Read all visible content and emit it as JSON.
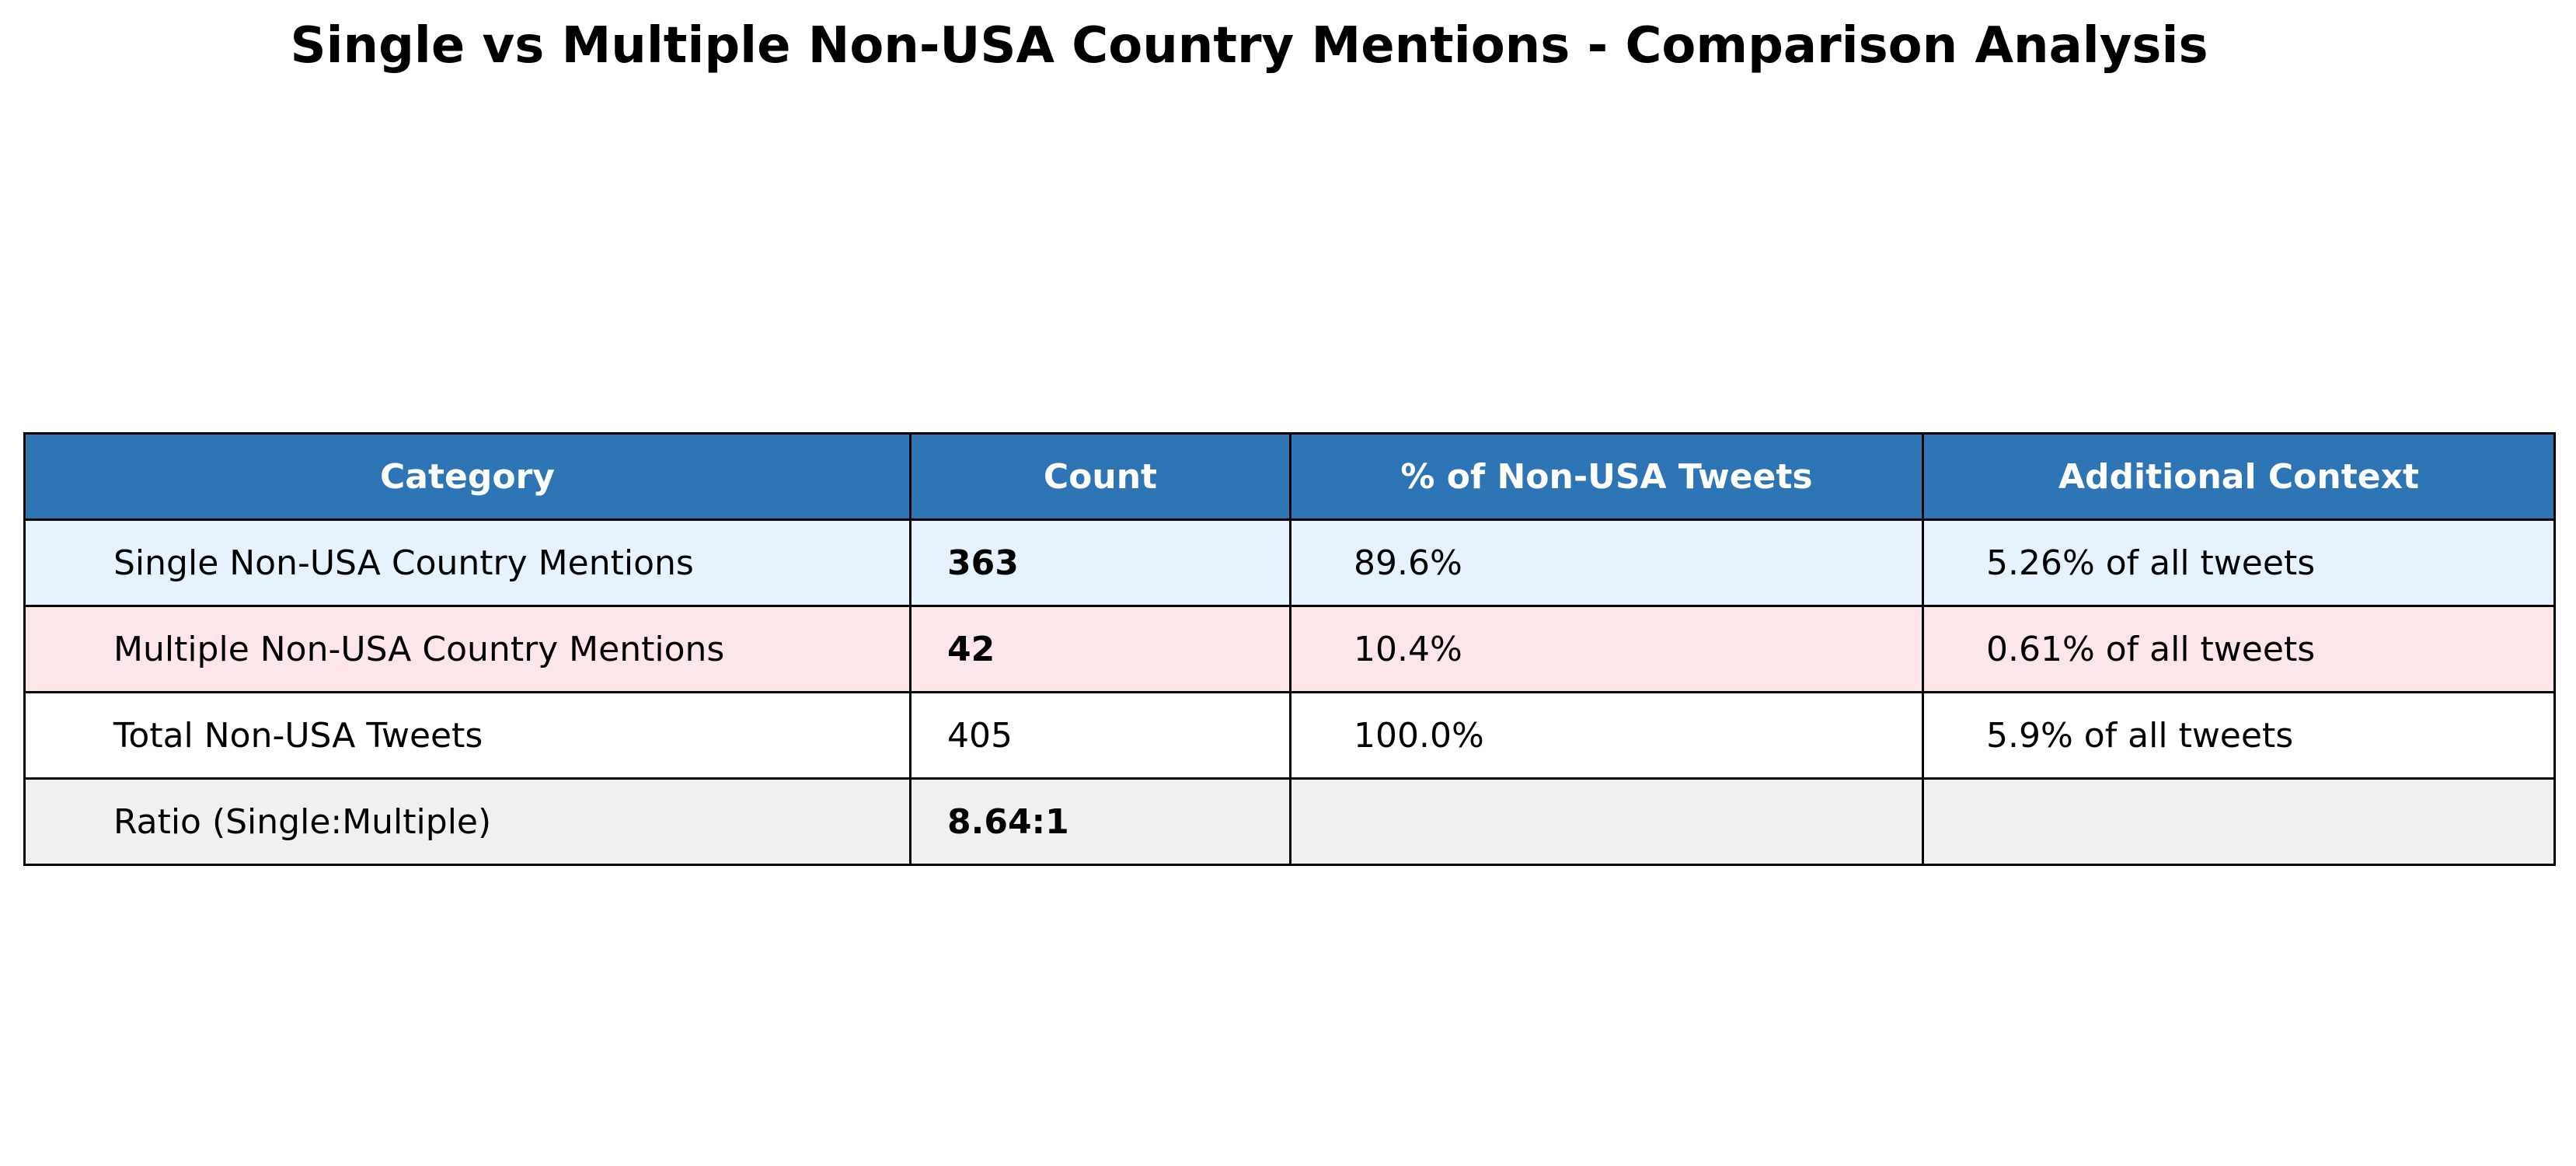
{
  "chart_data": {
    "type": "table",
    "title": "Single vs Multiple Non-USA Country Mentions - Comparison Analysis",
    "columns": [
      "Category",
      "Count",
      "% of Non-USA Tweets",
      "Additional Context"
    ],
    "rows": [
      {
        "cells": [
          "Single Non-USA Country Mentions",
          "363",
          "89.6%",
          "5.26% of all tweets"
        ],
        "bg": "#e6f2fd",
        "bold_cells": [
          1
        ]
      },
      {
        "cells": [
          "Multiple Non-USA Country Mentions",
          "42",
          "10.4%",
          "0.61% of all tweets"
        ],
        "bg": "#fde6e7",
        "bold_cells": [
          1
        ]
      },
      {
        "cells": [
          "Total Non-USA Tweets",
          "405",
          "100.0%",
          "5.9% of all tweets"
        ],
        "bg": "#ffffff",
        "bold_cells": []
      },
      {
        "cells": [
          "Ratio (Single:Multiple)",
          "8.64:1",
          "",
          ""
        ],
        "bg": "#f0f0f0",
        "bold_cells": [
          1
        ]
      }
    ],
    "header_bg": "#2e75b6",
    "header_text_color": "#ffffff"
  }
}
